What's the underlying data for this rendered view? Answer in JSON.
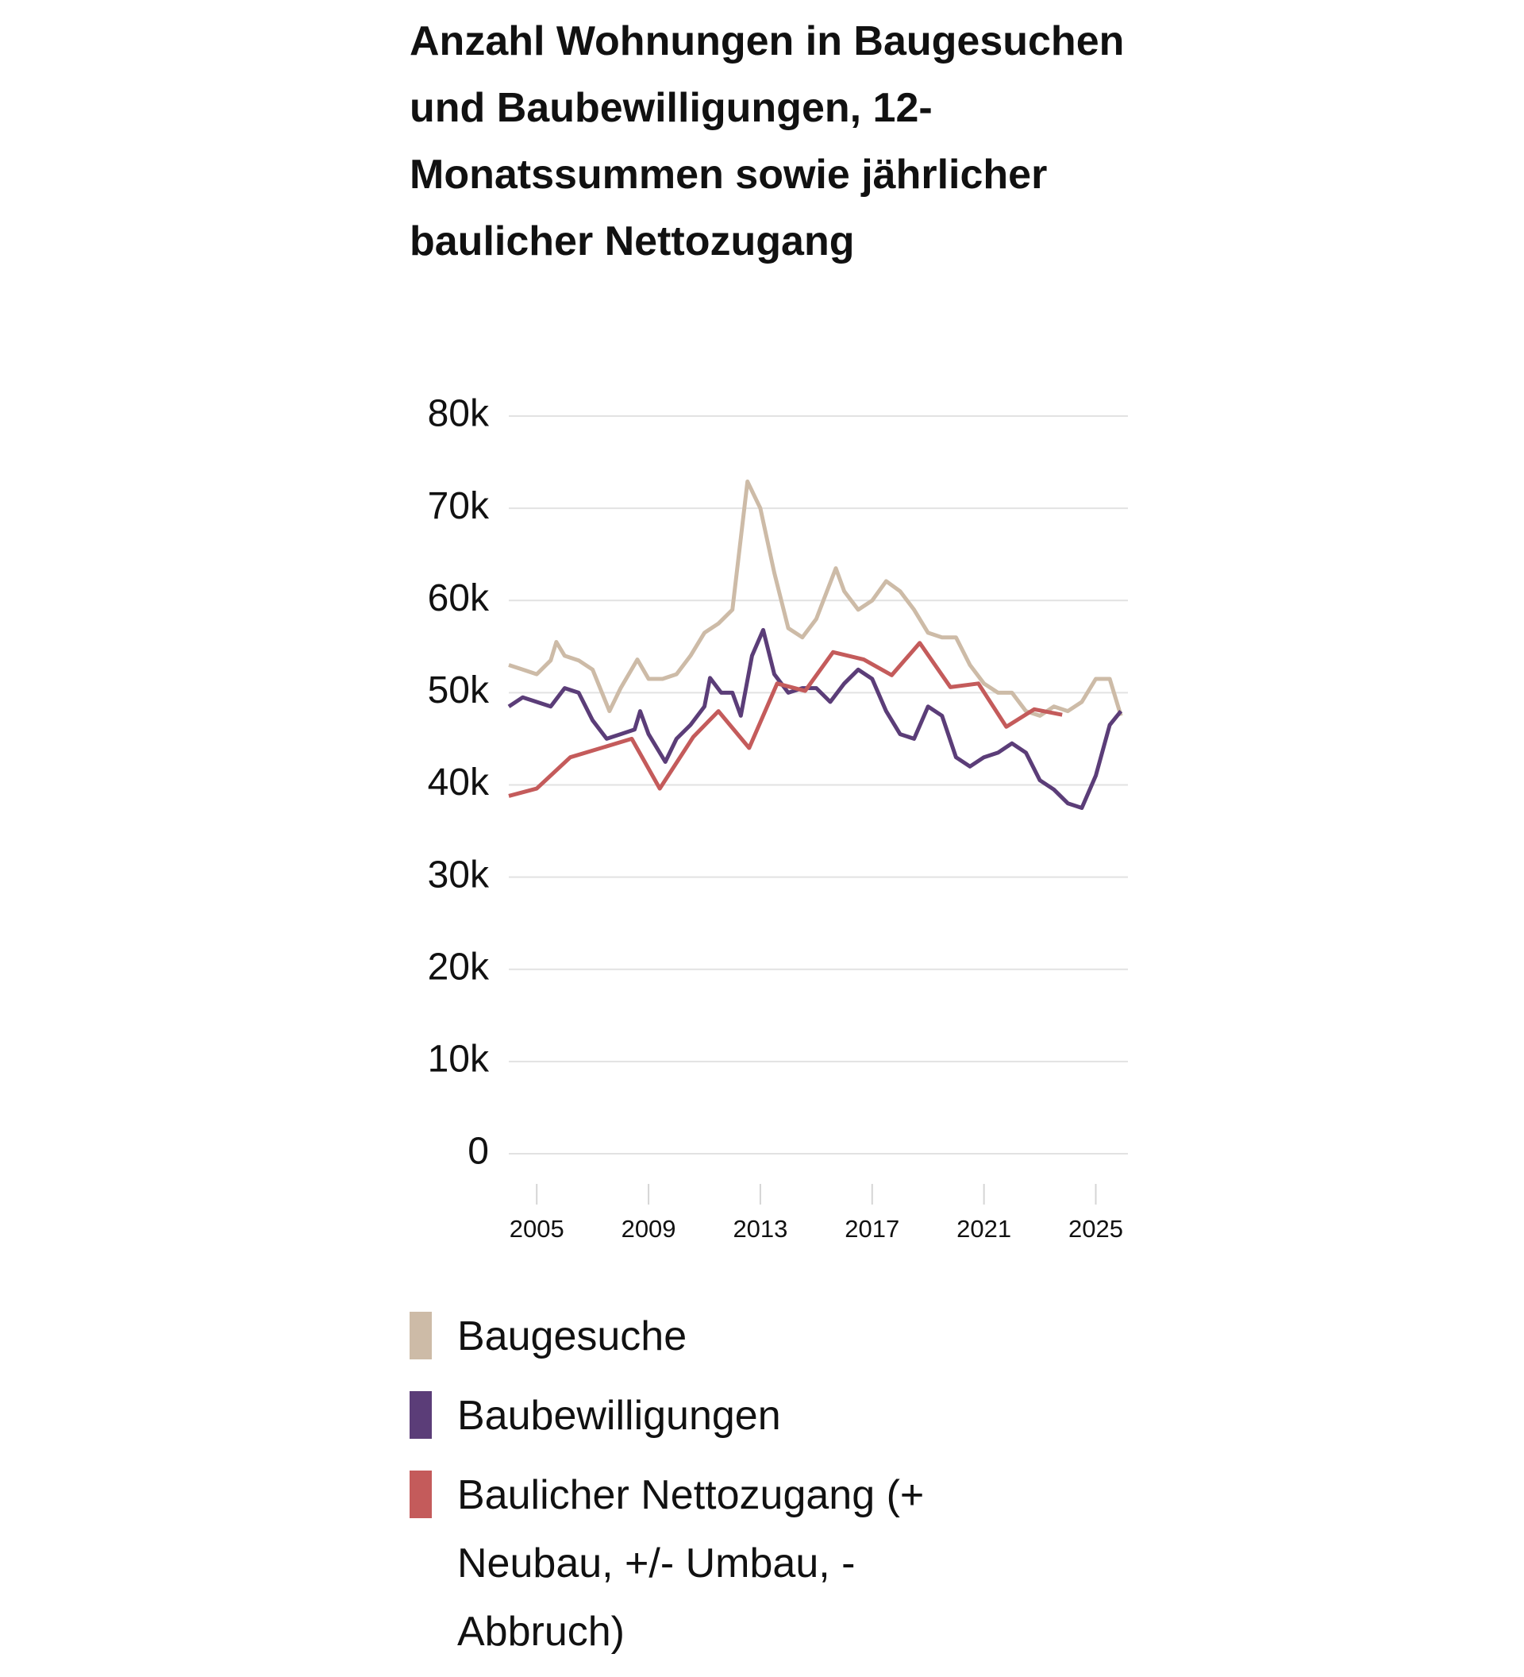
{
  "chart_data": {
    "type": "line",
    "title": "Anzahl Wohnungen in Baugesuchen und Baubewilligungen, 12-Monatssummen sowie jährlicher baulicher Nettozugang",
    "xlim": [
      2004,
      2026.15
    ],
    "xticks": [
      2005,
      2009,
      2013,
      2017,
      2021,
      2025
    ],
    "ylim": [
      0,
      80000
    ],
    "yticks": [
      0,
      {
        "value": 10000,
        "label": "10k"
      },
      {
        "value": 20000,
        "label": "20k"
      },
      {
        "value": 30000,
        "label": "30k"
      },
      {
        "value": 40000,
        "label": "40k"
      },
      {
        "value": 50000,
        "label": "50k"
      },
      {
        "value": 60000,
        "label": "60k"
      },
      {
        "value": 70000,
        "label": "70k"
      },
      {
        "value": 80000,
        "label": "80k"
      }
    ],
    "grid": true,
    "series": [
      {
        "name": "Baugesuche",
        "color": "#cdbba7",
        "x": [
          2004.0,
          2004.5,
          2005.0,
          2005.5,
          2005.7,
          2006.0,
          2006.5,
          2007.0,
          2007.6,
          2008.0,
          2008.6,
          2009.0,
          2009.5,
          2010.0,
          2010.5,
          2011.0,
          2011.5,
          2012.0,
          2012.54,
          2013.0,
          2013.5,
          2014.0,
          2014.5,
          2015.0,
          2015.7,
          2016.0,
          2016.5,
          2017.0,
          2017.5,
          2018.0,
          2018.5,
          2019.0,
          2019.5,
          2020.0,
          2020.5,
          2021.0,
          2021.5,
          2022.0,
          2022.5,
          2023.0,
          2023.5,
          2024.0,
          2024.5,
          2025.0,
          2025.5,
          2025.9
        ],
        "values": [
          53000,
          52500,
          52000,
          53500,
          55500,
          54000,
          53500,
          52500,
          48000,
          50500,
          53600,
          51500,
          51500,
          52000,
          54000,
          56500,
          57500,
          59000,
          72900,
          70000,
          63000,
          57000,
          56000,
          58000,
          63500,
          61000,
          59000,
          60000,
          62100,
          61000,
          59000,
          56500,
          56000,
          56000,
          53000,
          51000,
          50000,
          50000,
          48000,
          47500,
          48500,
          48000,
          49000,
          51500,
          51500,
          47500
        ]
      },
      {
        "name": "Baubewilligungen",
        "color": "#5b3d78",
        "x": [
          2004.0,
          2004.5,
          2005.0,
          2005.5,
          2006.0,
          2006.5,
          2007.0,
          2007.5,
          2008.0,
          2008.5,
          2008.7,
          2009.0,
          2009.6,
          2010.0,
          2010.5,
          2011.0,
          2011.2,
          2011.6,
          2012.0,
          2012.3,
          2012.7,
          2013.1,
          2013.5,
          2014.0,
          2014.5,
          2015.0,
          2015.5,
          2016.0,
          2016.5,
          2017.0,
          2017.5,
          2018.0,
          2018.5,
          2019.0,
          2019.5,
          2020.0,
          2020.5,
          2021.0,
          2021.5,
          2022.0,
          2022.5,
          2023.0,
          2023.5,
          2024.0,
          2024.5,
          2025.0,
          2025.5,
          2025.9
        ],
        "values": [
          48500,
          49500,
          49000,
          48500,
          50500,
          50000,
          47000,
          45000,
          45500,
          46000,
          48000,
          45500,
          42500,
          45000,
          46500,
          48500,
          51600,
          50000,
          50000,
          47500,
          54000,
          56800,
          52000,
          50000,
          50500,
          50500,
          49000,
          51000,
          52500,
          51500,
          48000,
          45500,
          45000,
          48500,
          47500,
          43000,
          42000,
          43000,
          43500,
          44500,
          43500,
          40500,
          39500,
          38000,
          37500,
          41000,
          46500,
          48000
        ]
      },
      {
        "name": "Baulicher Nettozugang (+ Neubau, +/- Umbau, - Abbruch)",
        "color": "#c45b5b",
        "x": [
          2004.0,
          2005.0,
          2006.2,
          2008.4,
          2009.4,
          2010.6,
          2011.5,
          2012.6,
          2013.6,
          2014.6,
          2015.6,
          2016.7,
          2017.7,
          2018.7,
          2019.8,
          2020.8,
          2021.8,
          2022.8,
          2023.8
        ],
        "values": [
          38800,
          39600,
          43000,
          45000,
          39600,
          45200,
          48000,
          44000,
          51000,
          50200,
          54400,
          53600,
          51900,
          55400,
          50600,
          51000,
          46300,
          48200,
          47600
        ]
      }
    ]
  }
}
